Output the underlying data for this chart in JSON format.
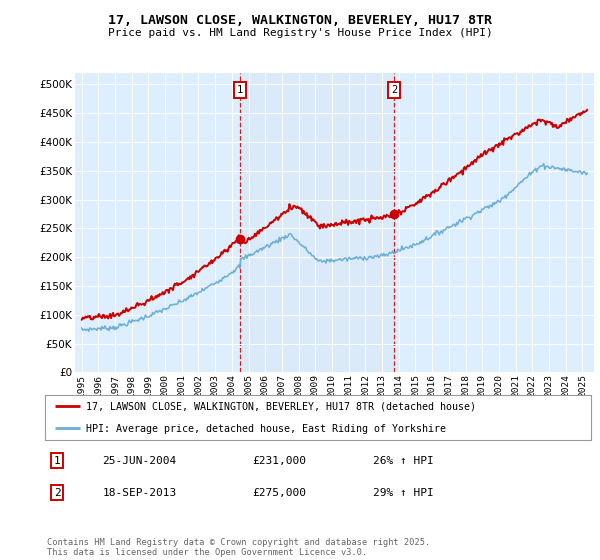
{
  "title": "17, LAWSON CLOSE, WALKINGTON, BEVERLEY, HU17 8TR",
  "subtitle": "Price paid vs. HM Land Registry's House Price Index (HPI)",
  "legend_line1": "17, LAWSON CLOSE, WALKINGTON, BEVERLEY, HU17 8TR (detached house)",
  "legend_line2": "HPI: Average price, detached house, East Riding of Yorkshire",
  "annotation1_date": "25-JUN-2004",
  "annotation1_price": "£231,000",
  "annotation1_hpi": "26% ↑ HPI",
  "annotation2_date": "18-SEP-2013",
  "annotation2_price": "£275,000",
  "annotation2_hpi": "29% ↑ HPI",
  "copyright_text": "Contains HM Land Registry data © Crown copyright and database right 2025.\nThis data is licensed under the Open Government Licence v3.0.",
  "hpi_color": "#6baed6",
  "price_color": "#cc0000",
  "annotation_color": "#cc0000",
  "plot_bg": "#ddeeff",
  "shade_color": "#cce0f5",
  "ylim": [
    0,
    520000
  ],
  "yticks": [
    0,
    50000,
    100000,
    150000,
    200000,
    250000,
    300000,
    350000,
    400000,
    450000,
    500000
  ],
  "year_start": 1995,
  "year_end": 2025,
  "purchase1_year": 2004.49,
  "purchase2_year": 2013.72,
  "purchase1_price": 231000,
  "purchase2_price": 275000
}
